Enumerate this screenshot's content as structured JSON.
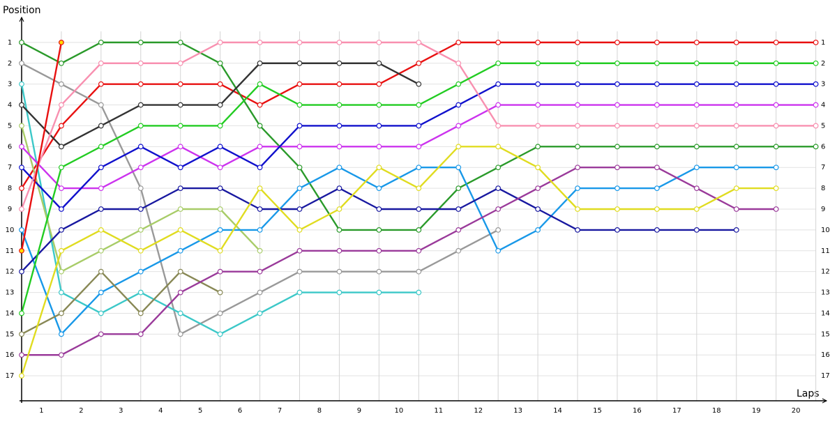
{
  "chart_data": {
    "type": "line",
    "y_label": "Position",
    "x_label": "Laps",
    "x": [
      0,
      1,
      2,
      3,
      4,
      5,
      6,
      7,
      8,
      9,
      10,
      11,
      12,
      13,
      14,
      15,
      16,
      17,
      18,
      19,
      20
    ],
    "xlim": [
      0,
      20.2
    ],
    "xticks": [
      {
        "value": 0.5,
        "label": "1"
      },
      {
        "value": 1.5,
        "label": "2"
      },
      {
        "value": 2.5,
        "label": "3"
      },
      {
        "value": 3.5,
        "label": "4"
      },
      {
        "value": 4.5,
        "label": "5"
      },
      {
        "value": 5.5,
        "label": "6"
      },
      {
        "value": 6.5,
        "label": "7"
      },
      {
        "value": 7.5,
        "label": "8"
      },
      {
        "value": 8.5,
        "label": "9"
      },
      {
        "value": 9.5,
        "label": "10"
      },
      {
        "value": 10.5,
        "label": "11"
      },
      {
        "value": 11.5,
        "label": "12"
      },
      {
        "value": 12.5,
        "label": "13"
      },
      {
        "value": 13.5,
        "label": "14"
      },
      {
        "value": 14.5,
        "label": "15"
      },
      {
        "value": 15.5,
        "label": "16"
      },
      {
        "value": 16.5,
        "label": "17"
      },
      {
        "value": 17.5,
        "label": "18"
      },
      {
        "value": 18.5,
        "label": "19"
      },
      {
        "value": 19.5,
        "label": "20"
      }
    ],
    "ylim": [
      18.2,
      -0.2
    ],
    "yticks": [
      1,
      2,
      3,
      4,
      5,
      6,
      7,
      8,
      9,
      10,
      11,
      12,
      13,
      14,
      15,
      16,
      17
    ],
    "grid": true,
    "series": [
      {
        "color": "#e81010",
        "values": [
          8,
          5,
          3,
          3,
          3,
          3,
          4,
          3,
          3,
          3,
          2,
          1,
          1,
          1,
          1,
          1,
          1,
          1,
          1,
          1,
          1
        ]
      },
      {
        "color": "#2a9a2a",
        "values": [
          1,
          2,
          1,
          1,
          1,
          2,
          5,
          7,
          10,
          10,
          10,
          8,
          7,
          6,
          6,
          6,
          6,
          6,
          6,
          6,
          6
        ]
      },
      {
        "color": "#999999",
        "values": [
          2,
          3,
          4,
          8,
          15,
          14,
          13,
          12,
          12,
          12,
          12,
          11,
          10,
          null,
          null,
          null,
          null,
          null,
          null,
          null,
          null
        ]
      },
      {
        "color": "#3cc8c8",
        "values": [
          3,
          13,
          14,
          13,
          14,
          15,
          14,
          13,
          13,
          13,
          13,
          null,
          null,
          null,
          null,
          null,
          null,
          null,
          null,
          null,
          null
        ]
      },
      {
        "color": "#333333",
        "values": [
          4,
          6,
          5,
          4,
          4,
          4,
          2,
          2,
          2,
          2,
          3,
          null,
          null,
          null,
          null,
          null,
          null,
          null,
          null,
          null,
          null
        ]
      },
      {
        "color": "#a8cc68",
        "values": [
          5,
          12,
          11,
          10,
          9,
          9,
          11,
          null,
          null,
          null,
          null,
          null,
          null,
          null,
          null,
          null,
          null,
          null,
          null,
          null,
          null
        ]
      },
      {
        "color": "#cc33ee",
        "values": [
          6,
          8,
          8,
          7,
          6,
          7,
          6,
          6,
          6,
          6,
          6,
          5,
          4,
          4,
          4,
          4,
          4,
          4,
          4,
          4,
          4
        ]
      },
      {
        "color": "#1010cc",
        "values": [
          7,
          9,
          7,
          6,
          7,
          6,
          7,
          5,
          5,
          5,
          5,
          4,
          3,
          3,
          3,
          3,
          3,
          3,
          3,
          3,
          3
        ]
      },
      {
        "color": "#f890b0",
        "values": [
          9,
          4,
          2,
          2,
          2,
          1,
          1,
          1,
          1,
          1,
          1,
          2,
          5,
          5,
          5,
          5,
          5,
          5,
          5,
          5,
          5
        ]
      },
      {
        "color": "#1898e8",
        "values": [
          10,
          15,
          13,
          12,
          11,
          10,
          10,
          8,
          7,
          8,
          7,
          7,
          11,
          10,
          8,
          8,
          8,
          7,
          7,
          7,
          null
        ]
      },
      {
        "color": "#e81010",
        "marker_fill": "#ffdd00",
        "values": [
          11,
          1,
          null,
          null,
          null,
          null,
          null,
          null,
          null,
          null,
          null,
          null,
          null,
          null,
          null,
          null,
          null,
          null,
          null,
          null,
          null
        ]
      },
      {
        "color": "#1818a0",
        "values": [
          12,
          10,
          9,
          9,
          8,
          8,
          9,
          9,
          8,
          9,
          9,
          9,
          8,
          9,
          10,
          10,
          10,
          10,
          10,
          null,
          null
        ]
      },
      {
        "color": "#22cc22",
        "values": [
          14,
          7,
          6,
          5,
          5,
          5,
          3,
          4,
          4,
          4,
          4,
          3,
          2,
          2,
          2,
          2,
          2,
          2,
          2,
          2,
          2
        ]
      },
      {
        "color": "#888855",
        "values": [
          15,
          14,
          12,
          14,
          12,
          13,
          null,
          null,
          null,
          null,
          null,
          null,
          null,
          null,
          null,
          null,
          null,
          null,
          null,
          null,
          null
        ]
      },
      {
        "color": "#9a3a9a",
        "values": [
          16,
          16,
          15,
          15,
          13,
          12,
          12,
          11,
          11,
          11,
          11,
          10,
          9,
          8,
          7,
          7,
          7,
          8,
          9,
          9,
          null
        ]
      },
      {
        "color": "#e0dc20",
        "values": [
          17,
          11,
          10,
          11,
          10,
          11,
          8,
          10,
          9,
          7,
          8,
          6,
          6,
          7,
          9,
          9,
          9,
          9,
          8,
          8,
          null
        ]
      }
    ]
  }
}
